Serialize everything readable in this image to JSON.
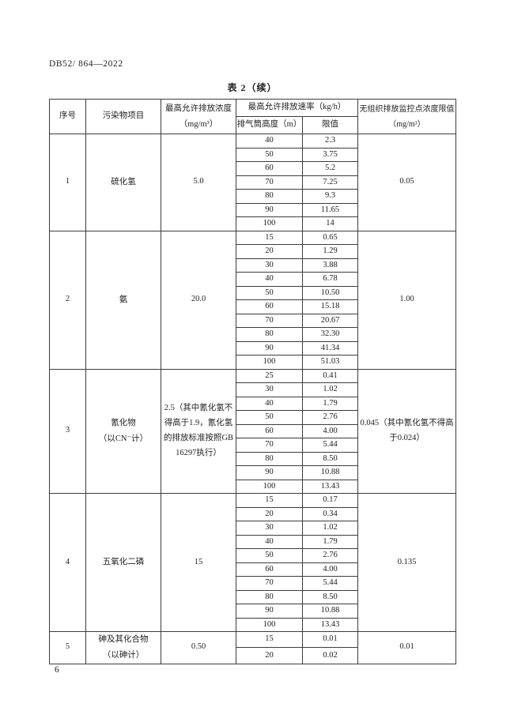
{
  "page": {
    "doc_code": "DB52/ 864—2022",
    "page_number": "6"
  },
  "table": {
    "title": "表 2（续）",
    "headers": {
      "seq": "序号",
      "pollutant": "污染物项目",
      "concentration": "最高允许排放浓度",
      "concentration_unit": "（mg/m³）",
      "rate": "最高允许排放速率（kg/h）",
      "stack_height": "排气筒高度（m）",
      "limit": "限值",
      "fugitive": "无组织排放监控点浓度限值",
      "fugitive_unit": "（mg/m³）"
    },
    "rows": [
      {
        "seq": "1",
        "pollutant_lines": [
          "硫化氢"
        ],
        "concentration": "5.0",
        "entries": [
          {
            "height": "40",
            "limit": "2.3"
          },
          {
            "height": "50",
            "limit": "3.75"
          },
          {
            "height": "60",
            "limit": "5.2"
          },
          {
            "height": "70",
            "limit": "7.25"
          },
          {
            "height": "80",
            "limit": "9.3"
          },
          {
            "height": "90",
            "limit": "11.65"
          },
          {
            "height": "100",
            "limit": "14"
          }
        ],
        "fugitive": "0.05"
      },
      {
        "seq": "2",
        "pollutant_lines": [
          "氨"
        ],
        "concentration": "20.0",
        "entries": [
          {
            "height": "15",
            "limit": "0.65"
          },
          {
            "height": "20",
            "limit": "1.29"
          },
          {
            "height": "30",
            "limit": "3.88"
          },
          {
            "height": "40",
            "limit": "6.78"
          },
          {
            "height": "50",
            "limit": "10.50"
          },
          {
            "height": "60",
            "limit": "15.18"
          },
          {
            "height": "70",
            "limit": "20.67"
          },
          {
            "height": "80",
            "limit": "32.30"
          },
          {
            "height": "90",
            "limit": "41.34"
          },
          {
            "height": "100",
            "limit": "51.03"
          }
        ],
        "fugitive": "1.00"
      },
      {
        "seq": "3",
        "pollutant_lines": [
          "氰化物",
          "（以CN⁻计）"
        ],
        "concentration": "2.5（其中氰化氢不得高于1.9，氰化氢的排放标准按照GB 16297执行）",
        "entries": [
          {
            "height": "25",
            "limit": "0.41"
          },
          {
            "height": "30",
            "limit": "1.02"
          },
          {
            "height": "40",
            "limit": "1.79"
          },
          {
            "height": "50",
            "limit": "2.76"
          },
          {
            "height": "60",
            "limit": "4.00"
          },
          {
            "height": "70",
            "limit": "5.44"
          },
          {
            "height": "80",
            "limit": "8.50"
          },
          {
            "height": "90",
            "limit": "10.88"
          },
          {
            "height": "100",
            "limit": "13.43"
          }
        ],
        "fugitive": "0.045（其中氰化氢不得高于0.024）"
      },
      {
        "seq": "4",
        "pollutant_lines": [
          "五氧化二磷"
        ],
        "concentration": "15",
        "entries": [
          {
            "height": "15",
            "limit": "0.17"
          },
          {
            "height": "20",
            "limit": "0.34"
          },
          {
            "height": "30",
            "limit": "1.02"
          },
          {
            "height": "40",
            "limit": "1.79"
          },
          {
            "height": "50",
            "limit": "2.76"
          },
          {
            "height": "60",
            "limit": "4.00"
          },
          {
            "height": "70",
            "limit": "5.44"
          },
          {
            "height": "80",
            "limit": "8.50"
          },
          {
            "height": "90",
            "limit": "10.88"
          },
          {
            "height": "100",
            "limit": "13.43"
          }
        ],
        "fugitive": "0.135"
      },
      {
        "seq": "5",
        "pollutant_lines": [
          "砷及其化合物",
          "（以砷计）"
        ],
        "concentration": "0.50",
        "entries": [
          {
            "height": "15",
            "limit": "0.01"
          },
          {
            "height": "20",
            "limit": "0.02"
          }
        ],
        "fugitive": "0.01"
      }
    ]
  }
}
